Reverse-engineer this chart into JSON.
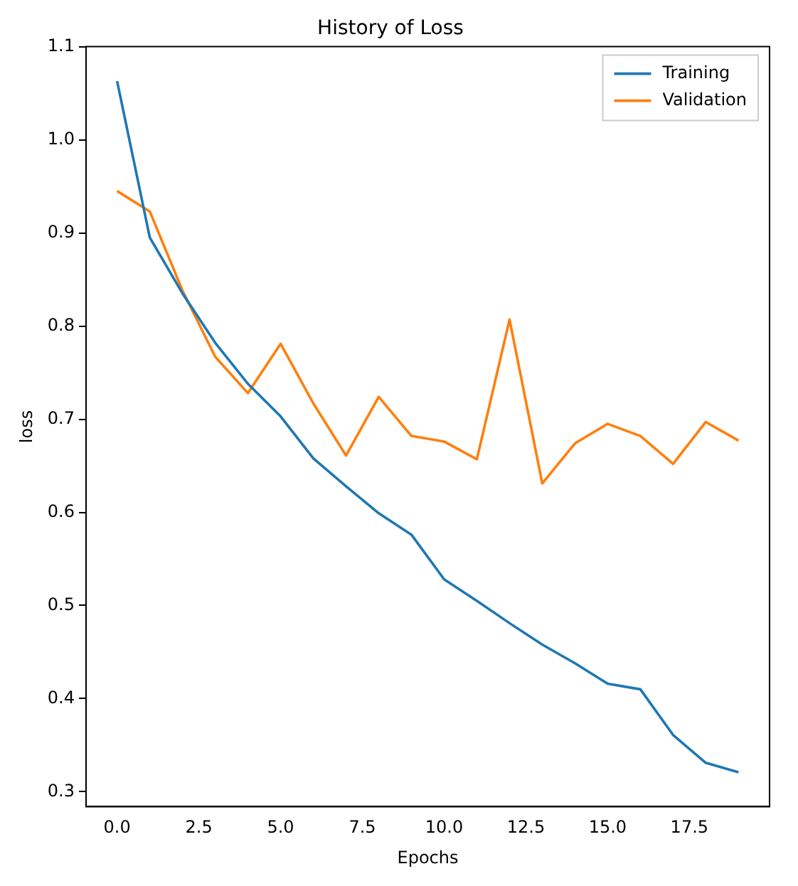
{
  "chart_data": {
    "type": "line",
    "title": "History of Loss",
    "xlabel": "Epochs",
    "ylabel": "loss",
    "x": [
      0,
      1,
      2,
      3,
      4,
      5,
      6,
      7,
      8,
      9,
      10,
      11,
      12,
      13,
      14,
      15,
      16,
      17,
      18,
      19
    ],
    "series": [
      {
        "name": "Training",
        "color": "#1f77b4",
        "values": [
          1.063,
          0.895,
          0.835,
          0.782,
          0.738,
          0.703,
          0.658,
          0.628,
          0.599,
          0.576,
          0.528,
          0.505,
          0.481,
          0.458,
          0.438,
          0.416,
          0.41,
          0.361,
          0.331,
          0.321
        ]
      },
      {
        "name": "Validation",
        "color": "#ff7f0e",
        "values": [
          0.945,
          0.923,
          0.838,
          0.767,
          0.728,
          0.781,
          0.717,
          0.661,
          0.724,
          0.682,
          0.676,
          0.657,
          0.807,
          0.631,
          0.674,
          0.695,
          0.682,
          0.652,
          0.697,
          0.677
        ]
      }
    ],
    "xlim": [
      -0.95,
      19.95
    ],
    "xticks": [
      {
        "value": 0,
        "label": "0.0"
      },
      {
        "value": 2.5,
        "label": "2.5"
      },
      {
        "value": 5,
        "label": "5.0"
      },
      {
        "value": 7.5,
        "label": "7.5"
      },
      {
        "value": 10,
        "label": "10.0"
      },
      {
        "value": 12.5,
        "label": "12.5"
      },
      {
        "value": 15,
        "label": "15.0"
      },
      {
        "value": 17.5,
        "label": "17.5"
      }
    ],
    "ylim": [
      0.284,
      1.1
    ],
    "yticks": [
      0.3,
      0.4,
      0.5,
      0.6,
      0.7,
      0.8,
      0.9,
      {
        "value": 1.0,
        "label": "1.0"
      },
      1.1
    ],
    "grid": false,
    "legend": "top right",
    "marker": "none",
    "line_style": "solid"
  }
}
